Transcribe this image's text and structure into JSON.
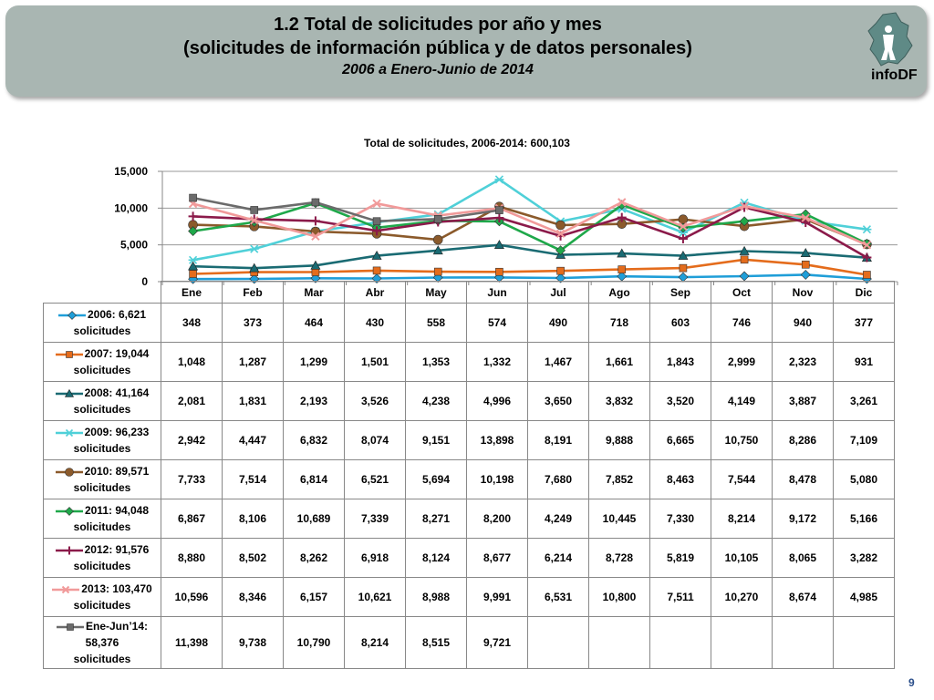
{
  "header": {
    "title_line1": "1.2 Total de solicitudes por año y mes",
    "title_line2": "(solicitudes de información pública y de datos personales)",
    "subtitle": "2006 a Enero-Junio de 2014",
    "logo_text": "infoDF"
  },
  "page_number": "9",
  "colors": {
    "header_bg": "#a9b6b2"
  },
  "chart_data": {
    "type": "line",
    "title": "Total de solicitudes, 2006-2014: 600,103",
    "categories": [
      "Ene",
      "Feb",
      "Mar",
      "Abr",
      "May",
      "Jun",
      "Jul",
      "Ago",
      "Sep",
      "Oct",
      "Nov",
      "Dic"
    ],
    "ylim": [
      0,
      15000
    ],
    "yticks": [
      "15,000",
      "10,000",
      "5,000",
      "0"
    ],
    "grid": true,
    "legend": "table-left",
    "series": [
      {
        "name": "2006: 6,621 solicitudes",
        "lines": [
          "2006: 6,621",
          "solicitudes"
        ],
        "color": "#1f9ed8",
        "marker": "diamond",
        "values": [
          348,
          373,
          464,
          430,
          558,
          574,
          490,
          718,
          603,
          746,
          940,
          377
        ],
        "labels": [
          "348",
          "373",
          "464",
          "430",
          "558",
          "574",
          "490",
          "718",
          "603",
          "746",
          "940",
          "377"
        ]
      },
      {
        "name": "2007: 19,044 solicitudes",
        "lines": [
          "2007: 19,044",
          "solicitudes"
        ],
        "color": "#e46c1c",
        "marker": "square",
        "values": [
          1048,
          1287,
          1299,
          1501,
          1353,
          1332,
          1467,
          1661,
          1843,
          2999,
          2323,
          931
        ],
        "labels": [
          "1,048",
          "1,287",
          "1,299",
          "1,501",
          "1,353",
          "1,332",
          "1,467",
          "1,661",
          "1,843",
          "2,999",
          "2,323",
          "931"
        ]
      },
      {
        "name": "2008: 41,164 solicitudes",
        "lines": [
          "2008: 41,164",
          "solicitudes"
        ],
        "color": "#1a6b73",
        "marker": "triangle",
        "values": [
          2081,
          1831,
          2193,
          3526,
          4238,
          4996,
          3650,
          3832,
          3520,
          4149,
          3887,
          3261
        ],
        "labels": [
          "2,081",
          "1,831",
          "2,193",
          "3,526",
          "4,238",
          "4,996",
          "3,650",
          "3,832",
          "3,520",
          "4,149",
          "3,887",
          "3,261"
        ]
      },
      {
        "name": "2009: 96,233 solicitudes",
        "lines": [
          "2009: 96,233",
          "solicitudes"
        ],
        "color": "#4fd0d8",
        "marker": "star",
        "values": [
          2942,
          4447,
          6832,
          8074,
          9151,
          13898,
          8191,
          9888,
          6665,
          10750,
          8286,
          7109
        ],
        "labels": [
          "2,942",
          "4,447",
          "6,832",
          "8,074",
          "9,151",
          "13,898",
          "8,191",
          "9,888",
          "6,665",
          "10,750",
          "8,286",
          "7,109"
        ]
      },
      {
        "name": "2010: 89,571 solicitudes",
        "lines": [
          "2010: 89,571",
          "solicitudes"
        ],
        "color": "#8b5a2b",
        "marker": "circle",
        "values": [
          7733,
          7514,
          6814,
          6521,
          5694,
          10198,
          7680,
          7852,
          8463,
          7544,
          8478,
          5080
        ],
        "labels": [
          "7,733",
          "7,514",
          "6,814",
          "6,521",
          "5,694",
          "10,198",
          "7,680",
          "7,852",
          "8,463",
          "7,544",
          "8,478",
          "5,080"
        ]
      },
      {
        "name": "2011: 94,048 solicitudes",
        "lines": [
          "2011: 94,048",
          "solicitudes"
        ],
        "color": "#1fa84a",
        "marker": "diamond",
        "values": [
          6867,
          8106,
          10689,
          7339,
          8271,
          8200,
          4249,
          10445,
          7330,
          8214,
          9172,
          5166
        ],
        "labels": [
          "6,867",
          "8,106",
          "10,689",
          "7,339",
          "8,271",
          "8,200",
          "4,249",
          "10,445",
          "7,330",
          "8,214",
          "9,172",
          "5,166"
        ]
      },
      {
        "name": "2012: 91,576 solicitudes",
        "lines": [
          "2012: 91,576",
          "solicitudes"
        ],
        "color": "#8b1a4a",
        "marker": "plus",
        "values": [
          8880,
          8502,
          8262,
          6918,
          8124,
          8677,
          6214,
          8728,
          5819,
          10105,
          8065,
          3282
        ],
        "labels": [
          "8,880",
          "8,502",
          "8,262",
          "6,918",
          "8,124",
          "8,677",
          "6,214",
          "8,728",
          "5,819",
          "10,105",
          "8,065",
          "3,282"
        ]
      },
      {
        "name": "2013: 103,470 solicitudes",
        "lines": [
          "2013: 103,470",
          "solicitudes"
        ],
        "color": "#f19a9a",
        "marker": "x",
        "values": [
          10596,
          8346,
          6157,
          10621,
          8988,
          9991,
          6531,
          10800,
          7511,
          10270,
          8674,
          4985
        ],
        "labels": [
          "10,596",
          "8,346",
          "6,157",
          "10,621",
          "8,988",
          "9,991",
          "6,531",
          "10,800",
          "7,511",
          "10,270",
          "8,674",
          "4,985"
        ]
      },
      {
        "name": "Ene-Jun’14: 58,376 solicitudes",
        "lines": [
          "Ene-Jun’14:",
          "58,376",
          "solicitudes"
        ],
        "color": "#6b6b6b",
        "marker": "square",
        "values": [
          11398,
          9738,
          10790,
          8214,
          8515,
          9721,
          null,
          null,
          null,
          null,
          null,
          null
        ],
        "labels": [
          "11,398",
          "9,738",
          "10,790",
          "8,214",
          "8,515",
          "9,721",
          "",
          "",
          "",
          "",
          "",
          ""
        ]
      }
    ]
  }
}
